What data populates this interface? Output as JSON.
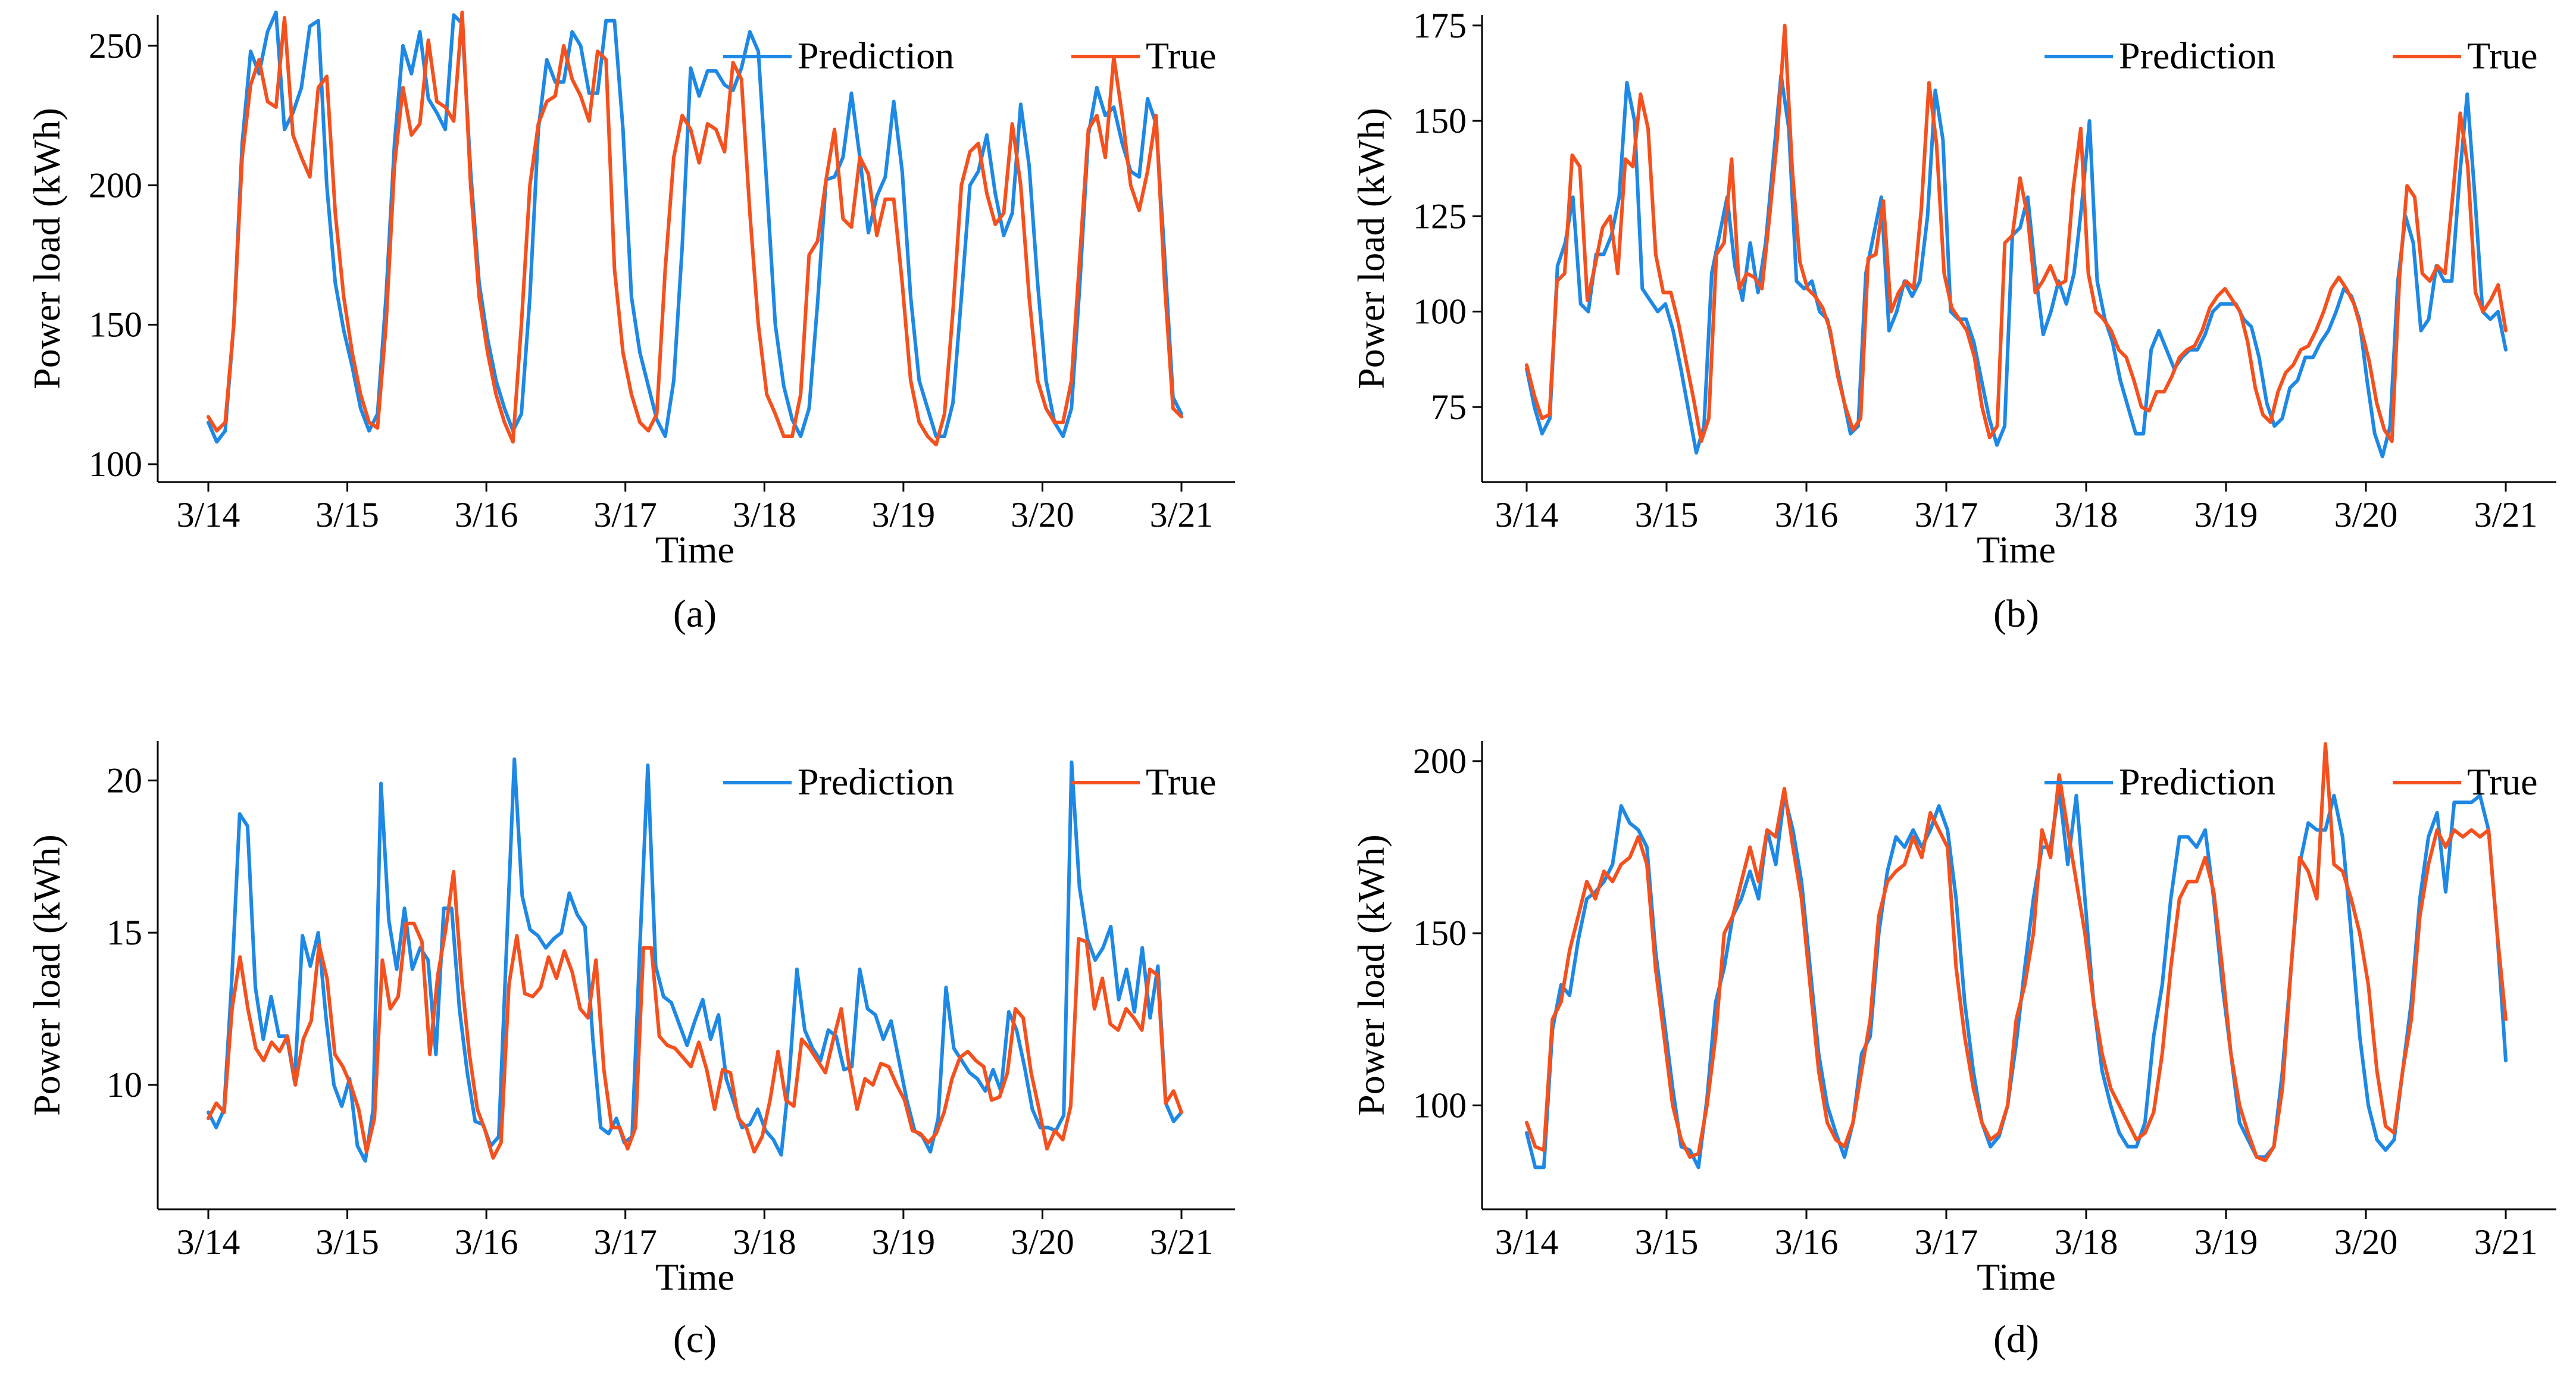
{
  "colors": {
    "prediction": "#1e88e5",
    "true": "#f4511e"
  },
  "chart_data": [
    {
      "type": "line",
      "caption": "(a)",
      "xlabel": "Time",
      "ylabel": "Power load (kWh)",
      "xticks": [
        "3/14",
        "3/15",
        "3/16",
        "3/17",
        "3/18",
        "3/19",
        "3/20",
        "3/21"
      ],
      "yticks": [
        100,
        150,
        200,
        250
      ],
      "xlim": [
        0,
        7.1
      ],
      "ylim": [
        100,
        260
      ],
      "legend": {
        "placement": "top-right",
        "items": [
          "Prediction",
          "True"
        ]
      },
      "series": [
        {
          "name": "Prediction",
          "y": [
            115,
            108,
            112,
            150,
            215,
            248,
            240,
            255,
            262,
            220,
            226,
            235,
            257,
            259,
            200,
            165,
            148,
            135,
            120,
            112,
            118,
            160,
            215,
            250,
            240,
            255,
            231,
            226,
            220,
            261,
            258,
            205,
            165,
            145,
            130,
            120,
            112,
            118,
            160,
            220,
            245,
            237,
            237,
            255,
            250,
            233,
            233,
            259,
            259,
            220,
            160,
            140,
            128,
            116,
            110,
            130,
            178,
            242,
            232,
            241,
            241,
            236,
            234,
            242,
            255,
            248,
            200,
            150,
            128,
            116,
            110,
            120,
            158,
            202,
            203,
            210,
            233,
            210,
            183,
            196,
            203,
            230,
            205,
            160,
            130,
            120,
            110,
            110,
            122,
            160,
            200,
            205,
            218,
            197,
            182,
            190,
            229,
            207,
            165,
            130,
            115,
            110,
            120,
            165,
            218,
            235,
            225,
            228,
            215,
            205,
            203,
            231,
            222,
            175,
            124,
            118
          ]
        },
        {
          "name": "True",
          "y": [
            117,
            112,
            115,
            150,
            210,
            236,
            245,
            230,
            228,
            260,
            218,
            210,
            203,
            235,
            239,
            190,
            160,
            140,
            125,
            115,
            113,
            150,
            207,
            235,
            218,
            222,
            252,
            230,
            228,
            223,
            262,
            200,
            160,
            140,
            125,
            115,
            108,
            150,
            200,
            222,
            230,
            232,
            250,
            238,
            232,
            223,
            248,
            245,
            170,
            140,
            125,
            115,
            112,
            118,
            170,
            210,
            225,
            220,
            208,
            222,
            220,
            212,
            244,
            238,
            190,
            150,
            125,
            118,
            110,
            110,
            125,
            175,
            180,
            202,
            220,
            188,
            185,
            210,
            204,
            182,
            195,
            195,
            165,
            130,
            115,
            110,
            107,
            118,
            155,
            200,
            212,
            215,
            197,
            186,
            190,
            222,
            200,
            160,
            130,
            120,
            115,
            115,
            130,
            175,
            220,
            225,
            210,
            246,
            225,
            200,
            191,
            205,
            225,
            165,
            120,
            117
          ]
        }
      ]
    },
    {
      "type": "line",
      "caption": "(b)",
      "xlabel": "Time",
      "ylabel": "Power load (kWh)",
      "xticks": [
        "3/14",
        "3/15",
        "3/16",
        "3/17",
        "3/18",
        "3/19",
        "3/20",
        "3/21"
      ],
      "yticks": [
        75,
        100,
        125,
        150,
        175
      ],
      "xlim": [
        0,
        7.1
      ],
      "ylim": [
        60,
        177
      ],
      "legend": {
        "placement": "top-right",
        "items": [
          "Prediction",
          "True"
        ]
      },
      "series": [
        {
          "name": "Prediction",
          "y": [
            85,
            75,
            68,
            72,
            112,
            118,
            130,
            102,
            100,
            115,
            115,
            120,
            130,
            160,
            150,
            106,
            103,
            100,
            102,
            95,
            85,
            74,
            63,
            70,
            110,
            120,
            130,
            112,
            103,
            118,
            105,
            118,
            140,
            162,
            148,
            108,
            106,
            108,
            100,
            98,
            88,
            78,
            68,
            70,
            110,
            120,
            130,
            95,
            100,
            108,
            104,
            108,
            125,
            158,
            145,
            100,
            98,
            98,
            92,
            82,
            72,
            65,
            70,
            120,
            122,
            130,
            110,
            94,
            100,
            108,
            102,
            110,
            128,
            150,
            108,
            98,
            92,
            82,
            75,
            68,
            68,
            90,
            95,
            90,
            85,
            88,
            90,
            90,
            94,
            100,
            102,
            102,
            102,
            98,
            96,
            88,
            76,
            70,
            72,
            80,
            82,
            88,
            88,
            92,
            95,
            100,
            106,
            104,
            98,
            82,
            68,
            62,
            70,
            108,
            125,
            118,
            95,
            98,
            112,
            108,
            108,
            135,
            157,
            130,
            100,
            98,
            100,
            90
          ]
        },
        {
          "name": "True",
          "y": [
            86,
            78,
            72,
            73,
            108,
            110,
            141,
            138,
            103,
            112,
            122,
            125,
            110,
            140,
            138,
            157,
            148,
            115,
            105,
            105,
            97,
            87,
            77,
            66,
            72,
            115,
            118,
            140,
            106,
            110,
            109,
            106,
            125,
            145,
            175,
            137,
            113,
            106,
            104,
            101,
            95,
            83,
            75,
            69,
            72,
            114,
            115,
            129,
            100,
            105,
            108,
            106,
            127,
            160,
            144,
            110,
            101,
            98,
            95,
            88,
            75,
            67,
            70,
            118,
            120,
            135,
            125,
            105,
            108,
            112,
            107,
            108,
            132,
            148,
            110,
            100,
            98,
            95,
            90,
            88,
            82,
            75,
            74,
            79,
            79,
            83,
            88,
            90,
            91,
            95,
            101,
            104,
            106,
            103,
            100,
            92,
            80,
            73,
            71,
            79,
            84,
            86,
            90,
            91,
            95,
            100,
            106,
            109,
            106,
            102,
            95,
            87,
            76,
            69,
            66,
            109,
            133,
            130,
            110,
            108,
            112,
            110,
            130,
            152,
            138,
            105,
            100,
            103,
            107,
            95
          ]
        }
      ]
    },
    {
      "type": "line",
      "caption": "(c)",
      "xlabel": "Time",
      "ylabel": "Power load (kWh)",
      "xticks": [
        "3/14",
        "3/15",
        "3/16",
        "3/17",
        "3/18",
        "3/19",
        "3/20",
        "3/21"
      ],
      "yticks": [
        10,
        15,
        20
      ],
      "xlim": [
        0,
        7.1
      ],
      "ylim": [
        6.5,
        21.2
      ],
      "legend": {
        "placement": "top-right",
        "items": [
          "Prediction",
          "True"
        ]
      },
      "series": [
        {
          "name": "Prediction",
          "y": [
            9.1,
            8.6,
            9.2,
            13.5,
            18.9,
            18.5,
            13.2,
            11.5,
            12.9,
            11.6,
            11.6,
            10.1,
            14.9,
            13.9,
            15,
            12.2,
            10,
            9.3,
            10.2,
            8,
            7.5,
            9.2,
            19.9,
            15.4,
            13.8,
            15.8,
            13.8,
            14.5,
            14.1,
            11,
            15.8,
            15.8,
            12.5,
            10.4,
            8.8,
            8.7,
            8,
            8.3,
            14.5,
            20.7,
            16.2,
            15.1,
            14.9,
            14.5,
            14.8,
            15,
            16.3,
            15.6,
            15.2,
            11.5,
            8.6,
            8.4,
            8.9,
            8.1,
            8.3,
            14.6,
            20.5,
            13.9,
            12.9,
            12.7,
            12,
            11.3,
            12.1,
            12.8,
            11.5,
            12.3,
            10.2,
            9.4,
            8.6,
            8.7,
            9.2,
            8.5,
            8.2,
            7.7,
            10.2,
            13.8,
            11.8,
            11.2,
            10.8,
            11.8,
            11.6,
            10.5,
            10.6,
            13.8,
            12.5,
            12.3,
            11.5,
            12.1,
            10.8,
            9.5,
            8.5,
            8.3,
            7.8,
            8.9,
            13.2,
            11.2,
            10.8,
            10.4,
            10.2,
            9.8,
            10.5,
            9.8,
            12.4,
            11.8,
            10.6,
            9.2,
            8.6,
            8.6,
            8.5,
            9,
            20.6,
            16.5,
            14.8,
            14.1,
            14.5,
            15.2,
            12.8,
            13.8,
            12.4,
            14.5,
            12.2,
            13.9,
            9.4,
            8.8,
            9.1
          ]
        },
        {
          "name": "True",
          "y": [
            8.9,
            9.4,
            9.1,
            12.5,
            14.2,
            12.5,
            11.2,
            10.8,
            11.4,
            11.1,
            11.6,
            10,
            11.5,
            12.1,
            14.6,
            13.5,
            11,
            10.6,
            10,
            9.2,
            7.8,
            8.9,
            14.1,
            12.5,
            12.9,
            15.3,
            15.3,
            14.7,
            11,
            13.6,
            15.1,
            17,
            13.5,
            11,
            9.2,
            8.5,
            7.6,
            8.1,
            13.3,
            14.9,
            13,
            12.9,
            13.2,
            14.2,
            13.5,
            14.4,
            13.7,
            12.5,
            12.2,
            14.1,
            10.5,
            8.6,
            8.6,
            7.9,
            8.6,
            14.5,
            14.5,
            11.6,
            11.3,
            11.2,
            10.9,
            10.6,
            11.4,
            10.5,
            9.2,
            10.5,
            10.4,
            8.9,
            8.6,
            7.8,
            8.3,
            9.5,
            11.1,
            9.5,
            9.3,
            11.5,
            11.2,
            10.8,
            10.4,
            11.5,
            12.5,
            10.6,
            9.2,
            10.2,
            10,
            10.7,
            10.6,
            10,
            9.5,
            8.5,
            8.4,
            8.1,
            8.4,
            9.1,
            10.2,
            10.9,
            11.1,
            10.8,
            10.6,
            9.5,
            9.6,
            10.4,
            12.5,
            12.2,
            10.4,
            9.2,
            7.9,
            8.5,
            8.2,
            9.3,
            14.8,
            14.7,
            12.5,
            13.5,
            12,
            11.8,
            12.5,
            12.2,
            11.8,
            13.8,
            13.6,
            9.4,
            9.8,
            9.1
          ]
        }
      ]
    },
    {
      "type": "line",
      "caption": "(d)",
      "xlabel": "Time",
      "ylabel": "Power load (kWh)",
      "xticks": [
        "3/14",
        "3/15",
        "3/16",
        "3/17",
        "3/18",
        "3/19",
        "3/20",
        "3/21"
      ],
      "yticks": [
        100,
        150,
        200
      ],
      "xlim": [
        0,
        7.1
      ],
      "ylim": [
        75,
        205
      ],
      "legend": {
        "placement": "top-right",
        "items": [
          "Prediction",
          "True"
        ]
      },
      "series": [
        {
          "name": "Prediction",
          "y": [
            92,
            82,
            82,
            122,
            135,
            132,
            148,
            160,
            162,
            165,
            170,
            187,
            182,
            180,
            175,
            145,
            125,
            105,
            88,
            87,
            82,
            102,
            130,
            140,
            155,
            160,
            168,
            160,
            180,
            170,
            190,
            180,
            165,
            140,
            115,
            100,
            92,
            85,
            95,
            115,
            120,
            150,
            168,
            178,
            175,
            180,
            175,
            180,
            187,
            180,
            160,
            130,
            110,
            95,
            88,
            91,
            100,
            118,
            140,
            160,
            175,
            175,
            192,
            170,
            190,
            160,
            130,
            110,
            100,
            92,
            88,
            88,
            95,
            120,
            135,
            160,
            178,
            178,
            175,
            180,
            160,
            135,
            115,
            95,
            90,
            85,
            85,
            88,
            110,
            140,
            170,
            182,
            180,
            180,
            190,
            178,
            150,
            120,
            100,
            90,
            87,
            90,
            110,
            130,
            160,
            178,
            185,
            162,
            188,
            188,
            188,
            190,
            180,
            150,
            113
          ]
        },
        {
          "name": "True",
          "y": [
            95,
            88,
            87,
            125,
            130,
            145,
            155,
            165,
            160,
            168,
            165,
            170,
            172,
            178,
            170,
            140,
            120,
            100,
            90,
            85,
            86,
            100,
            120,
            150,
            155,
            165,
            175,
            165,
            180,
            178,
            192,
            175,
            160,
            135,
            110,
            95,
            90,
            88,
            95,
            110,
            125,
            155,
            165,
            168,
            170,
            178,
            172,
            185,
            180,
            175,
            140,
            120,
            105,
            95,
            90,
            92,
            100,
            125,
            135,
            150,
            180,
            172,
            196,
            180,
            165,
            150,
            130,
            115,
            105,
            100,
            95,
            90,
            92,
            98,
            115,
            140,
            160,
            165,
            165,
            172,
            162,
            140,
            115,
            100,
            92,
            85,
            84,
            88,
            105,
            140,
            172,
            168,
            160,
            205,
            170,
            168,
            160,
            150,
            135,
            110,
            94,
            92,
            110,
            125,
            155,
            170,
            180,
            175,
            180,
            178,
            180,
            178,
            180,
            150,
            125
          ]
        }
      ]
    }
  ]
}
